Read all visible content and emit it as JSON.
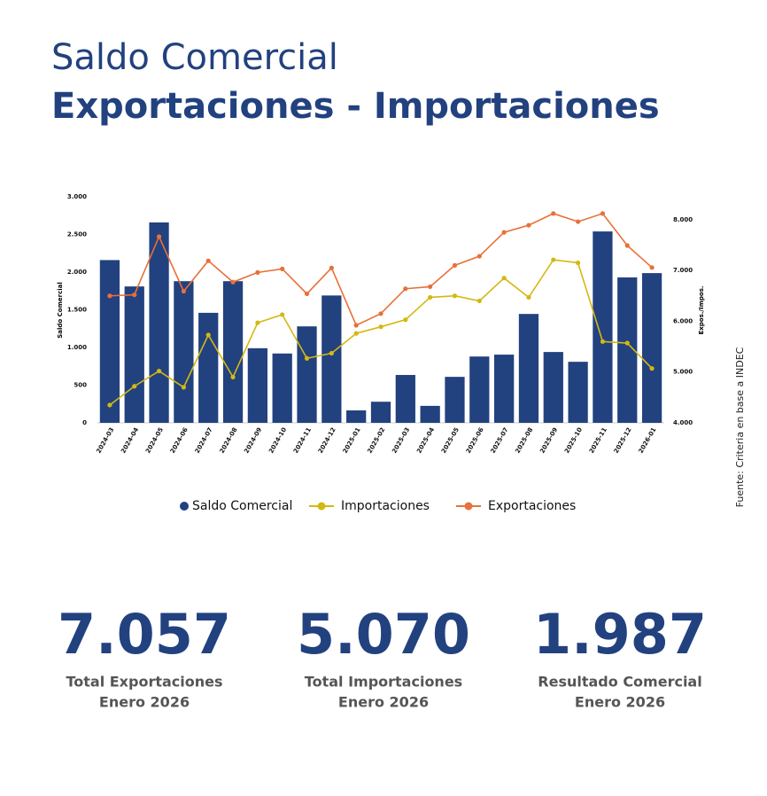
{
  "header": {
    "title": "Saldo Comercial",
    "subtitle": "Exportaciones - Importaciones"
  },
  "chart_data": {
    "type": "bar",
    "categories": [
      "2024-03",
      "2024-04",
      "2024-05",
      "2024-06",
      "2024-07",
      "2024-08",
      "2024-09",
      "2024-10",
      "2024-11",
      "2024-12",
      "2025-01",
      "2025-02",
      "2025-03",
      "2025-04",
      "2025-05",
      "2025-06",
      "2025-07",
      "2025-08",
      "2025-09",
      "2025-10",
      "2025-11",
      "2025-12",
      "2026-01"
    ],
    "series": [
      {
        "name": "Saldo Comercial",
        "type": "bar",
        "axis": "y",
        "color": "#22417f",
        "values": [
          2160,
          1810,
          2660,
          1880,
          1460,
          1880,
          990,
          920,
          1280,
          1690,
          165,
          280,
          635,
          225,
          610,
          880,
          905,
          1445,
          940,
          810,
          2540,
          1930,
          1987
        ]
      },
      {
        "name": "Importaciones",
        "type": "line",
        "axis": "y2",
        "color": "#d4b812",
        "values": [
          4350,
          4720,
          5020,
          4700,
          5730,
          4900,
          5970,
          6130,
          5270,
          5370,
          5760,
          5890,
          6030,
          6470,
          6500,
          6400,
          6850,
          6470,
          7210,
          7150,
          5600,
          5570,
          5070
        ]
      },
      {
        "name": "Exportaciones",
        "type": "line",
        "axis": "y2",
        "color": "#e8703a",
        "values": [
          6500,
          6520,
          7665,
          6590,
          7190,
          6770,
          6960,
          7030,
          6540,
          7050,
          5920,
          6150,
          6640,
          6680,
          7100,
          7280,
          7750,
          7890,
          8120,
          7960,
          8120,
          7490,
          7057
        ]
      }
    ],
    "ylabel": "Saldo Comercial",
    "y2label": "Expos./Impos.",
    "ylim": [
      0,
      3000
    ],
    "yticks": [
      0,
      500,
      {
        "value": 1000,
        "label": "1.000"
      },
      {
        "value": 1500,
        "label": "1.500"
      },
      {
        "value": 2000,
        "label": "2.000"
      },
      {
        "value": 2500,
        "label": "2.500"
      },
      {
        "value": 3000,
        "label": "3.000"
      }
    ],
    "y2lim": [
      4000,
      8450
    ],
    "y2ticks": [
      {
        "value": 4000,
        "label": "4.000"
      },
      {
        "value": 5000,
        "label": "5.000"
      },
      {
        "value": 6000,
        "label": "6.000"
      },
      {
        "value": 7000,
        "label": "7.000"
      },
      {
        "value": 8000,
        "label": "8.000"
      }
    ],
    "grid": false,
    "legend": "bottom"
  },
  "stats": [
    {
      "value": "7.057",
      "label": "Total Exportaciones",
      "period": "Enero 2026"
    },
    {
      "value": "5.070",
      "label": "Total Importaciones",
      "period": "Enero 2026"
    },
    {
      "value": "1.987",
      "label": "Resultado Comercial",
      "period": "Enero 2026"
    }
  ],
  "source": "Fuente: Criteria en base a INDEC"
}
